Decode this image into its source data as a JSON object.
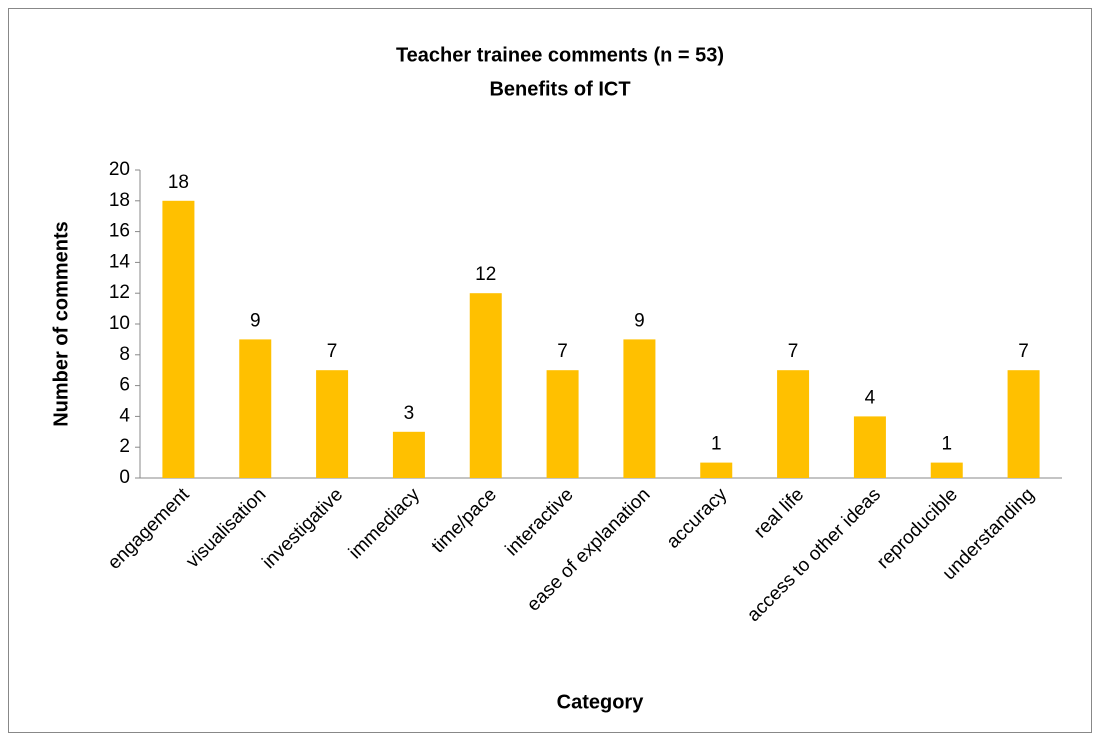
{
  "chart_data": {
    "type": "bar",
    "title": "Teacher trainee comments (n = 53)",
    "subtitle": "Benefits of ICT",
    "x_label": "Category",
    "y_label": "Number of comments",
    "categories": [
      "engagement",
      "visualisation",
      "investigative",
      "immediacy",
      "time/pace",
      "interactive",
      "ease of explanation",
      "accuracy",
      "real life",
      "access to other ideas",
      "reproducible",
      "understanding"
    ],
    "values": [
      18,
      9,
      7,
      3,
      12,
      7,
      9,
      1,
      7,
      4,
      1,
      7
    ],
    "color": "#ffc000",
    "ylim": [
      0,
      20
    ],
    "yticks": [
      0,
      2,
      4,
      6,
      8,
      10,
      12,
      14,
      16,
      18,
      20
    ],
    "grid": false
  }
}
